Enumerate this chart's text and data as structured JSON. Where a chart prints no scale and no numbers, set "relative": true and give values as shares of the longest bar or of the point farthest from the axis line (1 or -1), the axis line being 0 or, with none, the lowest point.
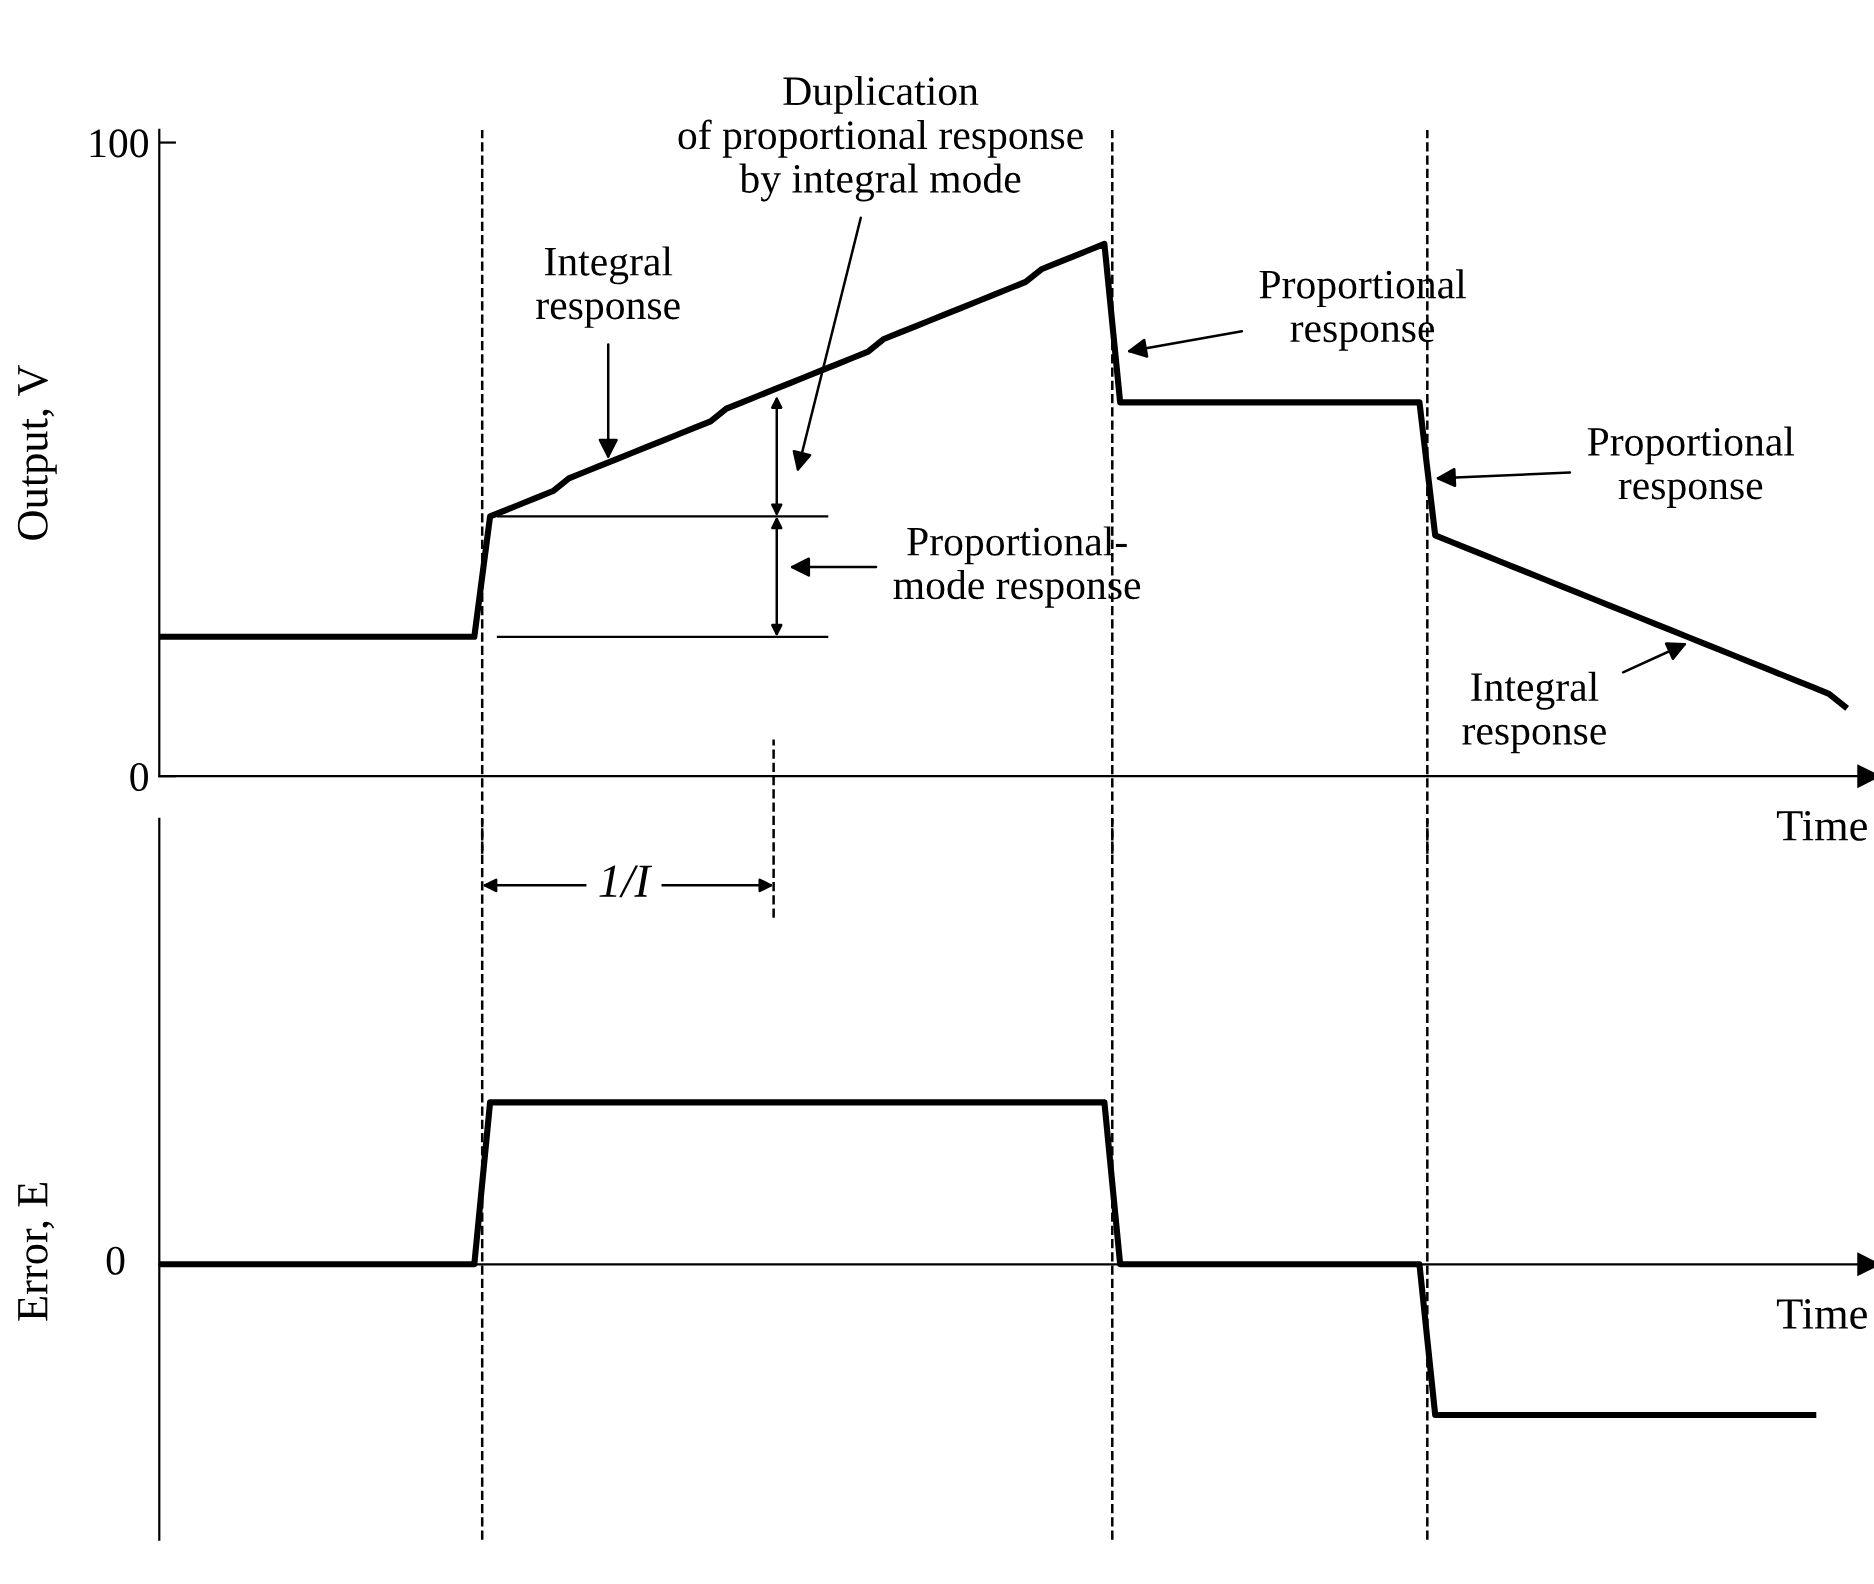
{
  "chart_data": [
    {
      "type": "line",
      "color": "#000000",
      "categories": [
        null,
        null,
        null,
        null,
        null,
        null,
        null,
        null,
        null,
        null,
        null,
        null,
        null,
        null,
        null,
        null,
        null,
        null,
        null,
        null,
        null,
        null,
        null,
        null,
        null,
        null,
        null,
        null,
        null,
        null,
        null,
        null,
        null,
        null,
        null,
        null,
        null,
        null,
        null,
        null,
        null,
        null,
        null,
        null,
        null,
        null,
        null,
        null,
        null,
        null,
        null,
        null,
        null,
        null,
        null,
        null,
        null,
        null,
        null,
        null,
        null,
        null,
        null,
        null,
        null,
        null,
        null,
        null,
        null,
        null,
        null,
        null,
        null,
        null,
        null,
        null,
        null,
        null,
        null,
        null,
        null,
        null,
        null,
        null,
        null,
        null,
        null,
        null,
        null,
        null,
        null,
        null,
        null,
        null,
        null,
        null,
        null,
        null,
        null,
        null,
        null,
        null,
        null,
        null,
        null,
        null,
        null,
        null
      ],
      "values": [
        22,
        22,
        22,
        22,
        22,
        22,
        22,
        22,
        22,
        22,
        22,
        22,
        22,
        22,
        22,
        22,
        22,
        22,
        22,
        22,
        22,
        41,
        42,
        43,
        44,
        45,
        47,
        48,
        49,
        50,
        51,
        52,
        53,
        54,
        55,
        56,
        58,
        59,
        60,
        61,
        62,
        63,
        64,
        65,
        66,
        67,
        69,
        70,
        71,
        72,
        73,
        74,
        75,
        76,
        77,
        78,
        80,
        81,
        82,
        83,
        84,
        59,
        59,
        59,
        59,
        59,
        59,
        59,
        59,
        59,
        59,
        59,
        59,
        59,
        59,
        59,
        59,
        59,
        59,
        59,
        59,
        38,
        37,
        36,
        35,
        34,
        33,
        32,
        31,
        30,
        29,
        28,
        27,
        26,
        25,
        24,
        23,
        22,
        21,
        20,
        19,
        18,
        17,
        16,
        15,
        14,
        13,
        11
      ],
      "ylim": [
        0,
        102
      ],
      "yticks": [
        0,
        100
      ],
      "tick_labels": "y",
      "xlabel": "Time",
      "ylabel": "Output, V",
      "annotations": [
        "Duplication\nof proportional response\nby integral mode",
        {
          "text": "Integral\nresponse",
          "y": 50
        },
        "Proportional\nresponse",
        "Proportional-\nmode response",
        "Proportional\nresponse",
        "Integral\nresponse"
      ]
    },
    {
      "type": "line",
      "color": "#000000",
      "relative": true,
      "categories": [
        null,
        null,
        null,
        null,
        null,
        null,
        null,
        null,
        null,
        null,
        null,
        null,
        null,
        null,
        null,
        null,
        null,
        null,
        null,
        null,
        null,
        null,
        null,
        null,
        null,
        null,
        null,
        null,
        null,
        null,
        null,
        null,
        null,
        null,
        null,
        null,
        null,
        null,
        null,
        null,
        null,
        null,
        null,
        null,
        null,
        null,
        null,
        null,
        null,
        null,
        null,
        null,
        null,
        null,
        null,
        null,
        null,
        null,
        null,
        null,
        null,
        null,
        null,
        null,
        null,
        null,
        null,
        null,
        null,
        null,
        null,
        null,
        null,
        null,
        null,
        null,
        null,
        null,
        null,
        null,
        null,
        null,
        null,
        null,
        null,
        null,
        null,
        null,
        null,
        null,
        null,
        null,
        null,
        null,
        null,
        null,
        null,
        null,
        null,
        null,
        null,
        null,
        null,
        null,
        null,
        null,
        null,
        null
      ],
      "values": [
        0,
        0,
        0,
        0,
        0,
        0,
        0,
        0,
        0,
        0,
        0,
        0,
        0,
        0,
        0,
        0,
        0,
        0,
        0,
        0,
        0,
        1,
        1,
        1,
        1,
        1,
        1,
        1,
        1,
        1,
        1,
        1,
        1,
        1,
        1,
        1,
        1,
        1,
        1,
        1,
        1,
        1,
        1,
        1,
        1,
        1,
        1,
        1,
        1,
        1,
        1,
        1,
        1,
        1,
        1,
        1,
        1,
        1,
        1,
        1,
        1,
        0,
        0,
        0,
        0,
        0,
        0,
        0,
        0,
        0,
        0,
        0,
        0,
        0,
        0,
        0,
        0,
        0,
        0,
        0,
        0,
        -0.93,
        -0.93,
        -0.93,
        -0.93,
        -0.93,
        -0.93,
        -0.93,
        -0.93,
        -0.93,
        -0.93,
        -0.93,
        -0.93,
        -0.93,
        -0.93,
        -0.93,
        -0.93,
        -0.93,
        -0.93,
        -0.93,
        -0.93,
        -0.93,
        -0.93,
        -0.93,
        -0.93,
        -0.93,
        null,
        null
      ],
      "tick_labels": false,
      "xlabel": "Time",
      "ylabel": "Error, E",
      "annotations": [
        "1/I",
        "0"
      ]
    }
  ]
}
